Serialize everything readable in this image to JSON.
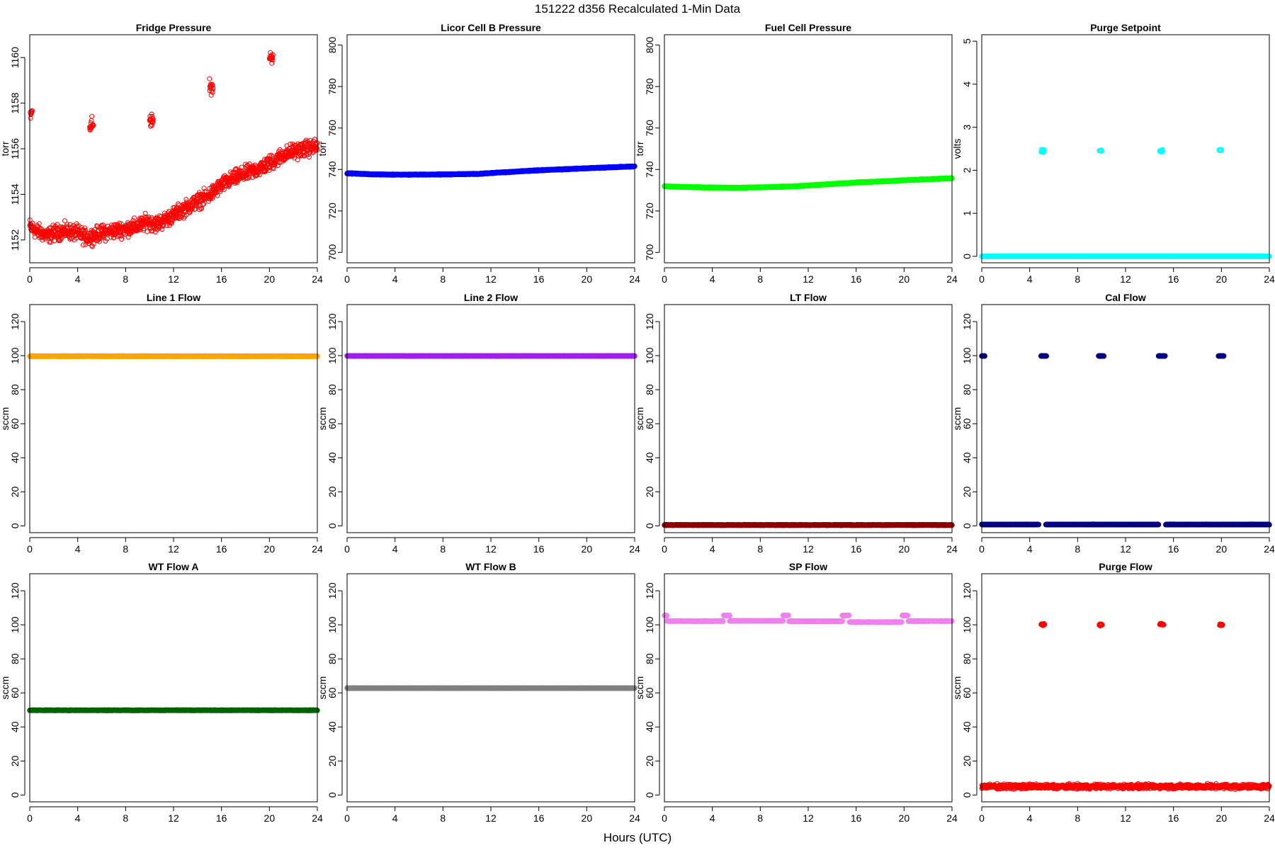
{
  "figure": {
    "title": "151222   d356   Recalculated 1-Min Data",
    "xlabel": "Hours (UTC)"
  },
  "chart_data": [
    {
      "type": "scatter",
      "title": "Fridge Pressure",
      "ylabel": "torr",
      "xlim": [
        0,
        24
      ],
      "xticks": [
        0,
        4,
        8,
        12,
        16,
        20,
        24
      ],
      "ylim": [
        1151,
        1161
      ],
      "yticks": [
        1152,
        1154,
        1156,
        1158,
        1160
      ],
      "color": "#ff0000",
      "marker": "open-circle",
      "series": [
        {
          "x": [
            0,
            0.5,
            1,
            1.5,
            2,
            3,
            4,
            4.8,
            5.3,
            6,
            7,
            8,
            9,
            9.8,
            10.5,
            11,
            12,
            13,
            14,
            14.8,
            15.3,
            16,
            17,
            18,
            19,
            19.8,
            20.5,
            21,
            22,
            23,
            24
          ],
          "y": [
            1152.6,
            1152.4,
            1152.3,
            1152.2,
            1152.3,
            1152.4,
            1152.3,
            1152.1,
            1152.2,
            1152.3,
            1152.4,
            1152.5,
            1152.6,
            1152.8,
            1152.7,
            1152.8,
            1153.1,
            1153.4,
            1153.7,
            1153.9,
            1154.1,
            1154.4,
            1154.7,
            1154.9,
            1155.1,
            1155.3,
            1155.5,
            1155.7,
            1155.9,
            1156.0,
            1156.1
          ],
          "noise": 0.5
        },
        {
          "x": [
            0.05,
            0.2
          ],
          "y": [
            1157.5,
            1157.5
          ],
          "noise": 0.4
        },
        {
          "x": [
            5.0,
            5.3
          ],
          "y": [
            1157.0,
            1157.0
          ],
          "noise": 0.5
        },
        {
          "x": [
            10.0,
            10.3
          ],
          "y": [
            1157.3,
            1157.3
          ],
          "noise": 0.45
        },
        {
          "x": [
            15.0,
            15.3
          ],
          "y": [
            1158.7,
            1158.7
          ],
          "noise": 0.45
        },
        {
          "x": [
            20.0,
            20.3
          ],
          "y": [
            1160.0,
            1160.0
          ],
          "noise": 0.45
        }
      ]
    },
    {
      "type": "scatter",
      "title": "Licor Cell B Pressure",
      "ylabel": "torr",
      "xlim": [
        0,
        24
      ],
      "xticks": [
        0,
        4,
        8,
        12,
        16,
        20,
        24
      ],
      "ylim": [
        695,
        805
      ],
      "yticks": [
        700,
        720,
        740,
        760,
        780,
        800
      ],
      "color": "#0000ff",
      "marker": "dense",
      "series": [
        {
          "x": [
            0,
            2,
            4,
            8,
            11,
            12,
            16,
            20,
            24
          ],
          "y": [
            738.2,
            737.7,
            737.5,
            737.6,
            737.9,
            738.3,
            739.6,
            740.6,
            741.5
          ],
          "noise": 0.3
        }
      ]
    },
    {
      "type": "scatter",
      "title": "Fuel Cell Pressure",
      "ylabel": "torr",
      "xlim": [
        0,
        24
      ],
      "xticks": [
        0,
        4,
        8,
        12,
        16,
        20,
        24
      ],
      "ylim": [
        695,
        805
      ],
      "yticks": [
        700,
        720,
        740,
        760,
        780,
        800
      ],
      "color": "#00ff00",
      "marker": "dense",
      "series": [
        {
          "x": [
            0,
            2,
            4,
            6,
            8,
            11,
            12,
            16,
            20,
            24
          ],
          "y": [
            731.9,
            731.5,
            731.3,
            731.2,
            731.4,
            731.9,
            732.3,
            733.7,
            734.8,
            735.8
          ],
          "noise": 0.3
        }
      ]
    },
    {
      "type": "scatter",
      "title": "Purge Setpoint",
      "ylabel": "volts",
      "xlim": [
        0,
        24
      ],
      "xticks": [
        0,
        4,
        8,
        12,
        16,
        20,
        24
      ],
      "ylim": [
        -0.15,
        5.15
      ],
      "yticks": [
        0,
        1,
        2,
        3,
        4,
        5
      ],
      "color": "#00ffff",
      "marker": "dense",
      "series": [
        {
          "x": [
            0,
            24
          ],
          "y": [
            0,
            0
          ],
          "noise": 0
        },
        {
          "x": [
            4.95,
            5.2
          ],
          "y": [
            2.45,
            2.45
          ],
          "noise": 0.05,
          "marker": "open-circle"
        },
        {
          "x": [
            9.8,
            10.0
          ],
          "y": [
            2.45,
            2.45
          ],
          "noise": 0.04,
          "marker": "open-circle"
        },
        {
          "x": [
            14.85,
            15.1
          ],
          "y": [
            2.45,
            2.45
          ],
          "noise": 0.05,
          "marker": "open-circle"
        },
        {
          "x": [
            19.8,
            20.0
          ],
          "y": [
            2.47,
            2.47
          ],
          "noise": 0.04,
          "marker": "open-circle"
        }
      ]
    },
    {
      "type": "scatter",
      "title": "Line 1 Flow",
      "ylabel": "sccm",
      "xlim": [
        0,
        24
      ],
      "xticks": [
        0,
        4,
        8,
        12,
        16,
        20,
        24
      ],
      "ylim": [
        -4,
        130
      ],
      "yticks": [
        0,
        20,
        40,
        60,
        80,
        100,
        120
      ],
      "color": "#ffa500",
      "marker": "dense",
      "series": [
        {
          "x": [
            0,
            24
          ],
          "y": [
            99.7,
            99.7
          ],
          "noise": 0.2
        }
      ]
    },
    {
      "type": "scatter",
      "title": "Line 2 Flow",
      "ylabel": "sccm",
      "xlim": [
        0,
        24
      ],
      "xticks": [
        0,
        4,
        8,
        12,
        16,
        20,
        24
      ],
      "ylim": [
        -4,
        130
      ],
      "yticks": [
        0,
        20,
        40,
        60,
        80,
        100,
        120
      ],
      "color": "#a020f0",
      "marker": "dense",
      "series": [
        {
          "x": [
            0,
            24
          ],
          "y": [
            99.8,
            99.8
          ],
          "noise": 0.2
        }
      ]
    },
    {
      "type": "scatter",
      "title": "LT Flow",
      "ylabel": "sccm",
      "xlim": [
        0,
        24
      ],
      "xticks": [
        0,
        4,
        8,
        12,
        16,
        20,
        24
      ],
      "ylim": [
        -4,
        130
      ],
      "yticks": [
        0,
        20,
        40,
        60,
        80,
        100,
        120
      ],
      "color": "#8b0000",
      "marker": "dense",
      "series": [
        {
          "x": [
            0,
            24
          ],
          "y": [
            0.5,
            0.5
          ],
          "noise": 0.3
        }
      ]
    },
    {
      "type": "scatter",
      "title": "Cal Flow",
      "ylabel": "sccm",
      "xlim": [
        0,
        24
      ],
      "xticks": [
        0,
        4,
        8,
        12,
        16,
        20,
        24
      ],
      "ylim": [
        -4,
        130
      ],
      "yticks": [
        0,
        20,
        40,
        60,
        80,
        100,
        120
      ],
      "color": "#000080",
      "marker": "dense",
      "series": [
        {
          "x": [
            0,
            4.75
          ],
          "y": [
            0.8,
            0.8
          ],
          "noise": 0.2
        },
        {
          "x": [
            5.35,
            14.75
          ],
          "y": [
            0.8,
            0.8
          ],
          "noise": 0.2
        },
        {
          "x": [
            15.35,
            24
          ],
          "y": [
            0.8,
            0.8
          ],
          "noise": 0.2
        },
        {
          "x": [
            0.0,
            0.25
          ],
          "y": [
            99.8,
            99.8
          ],
          "noise": 0.2
        },
        {
          "x": [
            4.95,
            5.4
          ],
          "y": [
            99.8,
            99.8
          ],
          "noise": 0.2
        },
        {
          "x": [
            9.75,
            10.2
          ],
          "y": [
            99.8,
            99.8
          ],
          "noise": 0.2
        },
        {
          "x": [
            14.75,
            15.3
          ],
          "y": [
            99.8,
            99.8
          ],
          "noise": 0.2
        },
        {
          "x": [
            19.75,
            20.2
          ],
          "y": [
            99.8,
            99.8
          ],
          "noise": 0.2
        }
      ]
    },
    {
      "type": "scatter",
      "title": "WT Flow A",
      "ylabel": "sccm",
      "xlim": [
        0,
        24
      ],
      "xticks": [
        0,
        4,
        8,
        12,
        16,
        20,
        24
      ],
      "ylim": [
        -4,
        130
      ],
      "yticks": [
        0,
        20,
        40,
        60,
        80,
        100,
        120
      ],
      "color": "#006400",
      "marker": "dense",
      "series": [
        {
          "x": [
            0,
            24
          ],
          "y": [
            49.8,
            49.8
          ],
          "noise": 0.2
        }
      ]
    },
    {
      "type": "scatter",
      "title": "WT Flow B",
      "ylabel": "sccm",
      "xlim": [
        0,
        24
      ],
      "xticks": [
        0,
        4,
        8,
        12,
        16,
        20,
        24
      ],
      "ylim": [
        -4,
        130
      ],
      "yticks": [
        0,
        20,
        40,
        60,
        80,
        100,
        120
      ],
      "color": "#808080",
      "marker": "dense",
      "series": [
        {
          "x": [
            0,
            24
          ],
          "y": [
            62.8,
            62.8
          ],
          "noise": 0.2
        }
      ]
    },
    {
      "type": "scatter",
      "title": "SP Flow",
      "ylabel": "sccm",
      "xlim": [
        0,
        24
      ],
      "xticks": [
        0,
        4,
        8,
        12,
        16,
        20,
        24
      ],
      "ylim": [
        -4,
        130
      ],
      "yticks": [
        0,
        20,
        40,
        60,
        80,
        100,
        120
      ],
      "color": "#ee82ee",
      "marker": "dense",
      "series": [
        {
          "x": [
            0.2,
            4.9
          ],
          "y": [
            102.2,
            102.2
          ],
          "noise": 0.2
        },
        {
          "x": [
            5.45,
            9.9
          ],
          "y": [
            102.3,
            102.3
          ],
          "noise": 0.2
        },
        {
          "x": [
            10.4,
            14.85
          ],
          "y": [
            102.1,
            102.1
          ],
          "noise": 0.2
        },
        {
          "x": [
            15.45,
            19.8
          ],
          "y": [
            101.6,
            101.6
          ],
          "noise": 0.2
        },
        {
          "x": [
            20.35,
            24
          ],
          "y": [
            102.2,
            102.2
          ],
          "noise": 0.2
        },
        {
          "x": [
            0.0,
            0.2
          ],
          "y": [
            105.5,
            105.5
          ],
          "noise": 0.2
        },
        {
          "x": [
            4.95,
            5.45
          ],
          "y": [
            105.5,
            105.5
          ],
          "noise": 0.2
        },
        {
          "x": [
            9.9,
            10.35
          ],
          "y": [
            105.5,
            105.5
          ],
          "noise": 0.2
        },
        {
          "x": [
            14.85,
            15.4
          ],
          "y": [
            105.5,
            105.5
          ],
          "noise": 0.2
        },
        {
          "x": [
            19.85,
            20.3
          ],
          "y": [
            105.5,
            105.5
          ],
          "noise": 0.2
        }
      ]
    },
    {
      "type": "scatter",
      "title": "Purge Flow",
      "ylabel": "sccm",
      "xlim": [
        0,
        24
      ],
      "xticks": [
        0,
        4,
        8,
        12,
        16,
        20,
        24
      ],
      "ylim": [
        -4,
        130
      ],
      "yticks": [
        0,
        20,
        40,
        60,
        80,
        100,
        120
      ],
      "color": "#ff0000",
      "marker": "open-circle",
      "series": [
        {
          "x": [
            0,
            24
          ],
          "y": [
            5.0,
            5.0
          ],
          "noise": 2.0
        },
        {
          "x": [
            4.95,
            5.25
          ],
          "y": [
            100.2,
            100.2
          ],
          "noise": 1.0
        },
        {
          "x": [
            9.8,
            10.05
          ],
          "y": [
            100.0,
            100.0
          ],
          "noise": 0.8
        },
        {
          "x": [
            14.85,
            15.2
          ],
          "y": [
            100.2,
            100.2
          ],
          "noise": 0.9
        },
        {
          "x": [
            19.85,
            20.1
          ],
          "y": [
            100.2,
            100.2
          ],
          "noise": 1.0
        }
      ]
    }
  ]
}
